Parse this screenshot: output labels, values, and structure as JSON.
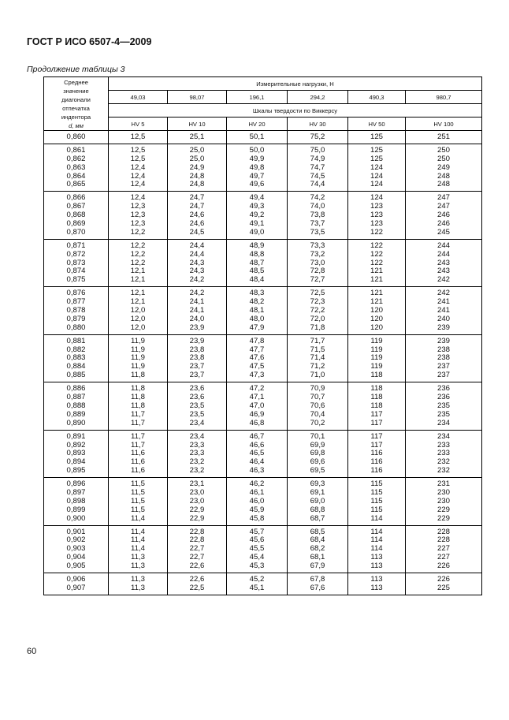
{
  "header": "ГОСТ Р ИСО 6507-4—2009",
  "caption": "Продолжение таблицы 3",
  "page_number": "60",
  "table": {
    "first_col_header": [
      "Среднее",
      "значение",
      "диагонали",
      "отпечатка",
      "индентора",
      "d, мм"
    ],
    "loads_title": "Измерительные нагрузки, Н",
    "loads": [
      "49,03",
      "98,07",
      "196,1",
      "294,2",
      "490,3",
      "980,7"
    ],
    "scales_title": "Шкалы твердости по Виккерсу",
    "scales": [
      "HV 5",
      "HV 10",
      "HV 20",
      "HV 30",
      "HV 50",
      "HV 100"
    ],
    "groups": [
      [
        [
          "0,860",
          "12,5",
          "25,1",
          "50,1",
          "75,2",
          "125",
          "251"
        ]
      ],
      [
        [
          "0,861",
          "12,5",
          "25,0",
          "50,0",
          "75,0",
          "125",
          "250"
        ],
        [
          "0,862",
          "12,5",
          "25,0",
          "49,9",
          "74,9",
          "125",
          "250"
        ],
        [
          "0,863",
          "12,4",
          "24,9",
          "49,8",
          "74,7",
          "124",
          "249"
        ],
        [
          "0,864",
          "12,4",
          "24,8",
          "49,7",
          "74,5",
          "124",
          "248"
        ],
        [
          "0,865",
          "12,4",
          "24,8",
          "49,6",
          "74,4",
          "124",
          "248"
        ]
      ],
      [
        [
          "0,866",
          "12,4",
          "24,7",
          "49,4",
          "74,2",
          "124",
          "247"
        ],
        [
          "0,867",
          "12,3",
          "24,7",
          "49,3",
          "74,0",
          "123",
          "247"
        ],
        [
          "0,868",
          "12,3",
          "24,6",
          "49,2",
          "73,8",
          "123",
          "246"
        ],
        [
          "0,869",
          "12,3",
          "24,6",
          "49,1",
          "73,7",
          "123",
          "246"
        ],
        [
          "0,870",
          "12,2",
          "24,5",
          "49,0",
          "73,5",
          "122",
          "245"
        ]
      ],
      [
        [
          "0,871",
          "12,2",
          "24,4",
          "48,9",
          "73,3",
          "122",
          "244"
        ],
        [
          "0,872",
          "12,2",
          "24,4",
          "48,8",
          "73,2",
          "122",
          "244"
        ],
        [
          "0,873",
          "12,2",
          "24,3",
          "48,7",
          "73,0",
          "122",
          "243"
        ],
        [
          "0,874",
          "12,1",
          "24,3",
          "48,5",
          "72,8",
          "121",
          "243"
        ],
        [
          "0,875",
          "12,1",
          "24,2",
          "48,4",
          "72,7",
          "121",
          "242"
        ]
      ],
      [
        [
          "0,876",
          "12,1",
          "24,2",
          "48,3",
          "72,5",
          "121",
          "242"
        ],
        [
          "0,877",
          "12,1",
          "24,1",
          "48,2",
          "72,3",
          "121",
          "241"
        ],
        [
          "0,878",
          "12,0",
          "24,1",
          "48,1",
          "72,2",
          "120",
          "241"
        ],
        [
          "0,879",
          "12,0",
          "24,0",
          "48,0",
          "72,0",
          "120",
          "240"
        ],
        [
          "0,880",
          "12,0",
          "23,9",
          "47,9",
          "71,8",
          "120",
          "239"
        ]
      ],
      [
        [
          "0,881",
          "11,9",
          "23,9",
          "47,8",
          "71,7",
          "119",
          "239"
        ],
        [
          "0,882",
          "11,9",
          "23,8",
          "47,7",
          "71,5",
          "119",
          "238"
        ],
        [
          "0,883",
          "11,9",
          "23,8",
          "47,6",
          "71,4",
          "119",
          "238"
        ],
        [
          "0,884",
          "11,9",
          "23,7",
          "47,5",
          "71,2",
          "119",
          "237"
        ],
        [
          "0,885",
          "11,8",
          "23,7",
          "47,3",
          "71,0",
          "118",
          "237"
        ]
      ],
      [
        [
          "0,886",
          "11,8",
          "23,6",
          "47,2",
          "70,9",
          "118",
          "236"
        ],
        [
          "0,887",
          "11,8",
          "23,6",
          "47,1",
          "70,7",
          "118",
          "236"
        ],
        [
          "0,888",
          "11,8",
          "23,5",
          "47,0",
          "70,6",
          "118",
          "235"
        ],
        [
          "0,889",
          "11,7",
          "23,5",
          "46,9",
          "70,4",
          "117",
          "235"
        ],
        [
          "0,890",
          "11,7",
          "23,4",
          "46,8",
          "70,2",
          "117",
          "234"
        ]
      ],
      [
        [
          "0,891",
          "11,7",
          "23,4",
          "46,7",
          "70,1",
          "117",
          "234"
        ],
        [
          "0,892",
          "11,7",
          "23,3",
          "46,6",
          "69,9",
          "117",
          "233"
        ],
        [
          "0,893",
          "11,6",
          "23,3",
          "46,5",
          "69,8",
          "116",
          "233"
        ],
        [
          "0,894",
          "11,6",
          "23,2",
          "46,4",
          "69,6",
          "116",
          "232"
        ],
        [
          "0,895",
          "11,6",
          "23,2",
          "46,3",
          "69,5",
          "116",
          "232"
        ]
      ],
      [
        [
          "0,896",
          "11,5",
          "23,1",
          "46,2",
          "69,3",
          "115",
          "231"
        ],
        [
          "0,897",
          "11,5",
          "23,0",
          "46,1",
          "69,1",
          "115",
          "230"
        ],
        [
          "0,898",
          "11,5",
          "23,0",
          "46,0",
          "69,0",
          "115",
          "230"
        ],
        [
          "0,899",
          "11,5",
          "22,9",
          "45,9",
          "68,8",
          "115",
          "229"
        ],
        [
          "0,900",
          "11,4",
          "22,9",
          "45,8",
          "68,7",
          "114",
          "229"
        ]
      ],
      [
        [
          "0,901",
          "11,4",
          "22,8",
          "45,7",
          "68,5",
          "114",
          "228"
        ],
        [
          "0,902",
          "11,4",
          "22,8",
          "45,6",
          "68,4",
          "114",
          "228"
        ],
        [
          "0,903",
          "11,4",
          "22,7",
          "45,5",
          "68,2",
          "114",
          "227"
        ],
        [
          "0,904",
          "11,3",
          "22,7",
          "45,4",
          "68,1",
          "113",
          "227"
        ],
        [
          "0,905",
          "11,3",
          "22,6",
          "45,3",
          "67,9",
          "113",
          "226"
        ]
      ],
      [
        [
          "0,906",
          "11,3",
          "22,6",
          "45,2",
          "67,8",
          "113",
          "226"
        ],
        [
          "0,907",
          "11,3",
          "22,5",
          "45,1",
          "67,6",
          "113",
          "225"
        ]
      ]
    ]
  }
}
